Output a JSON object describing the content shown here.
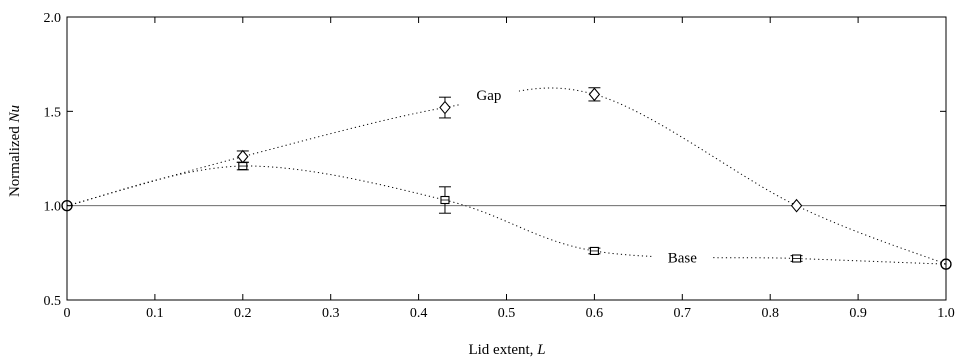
{
  "chart_data": {
    "type": "scatter",
    "title": "",
    "xlabel": "Lid extent, L",
    "xlabel_main": "Lid extent, ",
    "xlabel_var": "L",
    "ylabel": "Normalized Nu",
    "ylabel_main": "Normalized ",
    "ylabel_var": "Nu",
    "xlim": [
      0,
      1.0
    ],
    "ylim": [
      0.5,
      2.0
    ],
    "x_ticks": [
      "0",
      "0.1",
      "0.2",
      "0.3",
      "0.4",
      "0.5",
      "0.6",
      "0.7",
      "0.8",
      "0.9",
      "1.0"
    ],
    "y_ticks": [
      "0.5",
      "1.0",
      "1.5",
      "2.0"
    ],
    "grid": false,
    "reference_line": 1.0,
    "series": [
      {
        "name": "Gap",
        "marker": "diamond",
        "points": [
          {
            "x": 0.0,
            "y": 1.0,
            "err": 0.01
          },
          {
            "x": 0.2,
            "y": 1.26,
            "err": 0.03
          },
          {
            "x": 0.43,
            "y": 1.52,
            "err": 0.055
          },
          {
            "x": 0.6,
            "y": 1.59,
            "err": 0.035
          },
          {
            "x": 0.83,
            "y": 1.0,
            "err": 0.01
          },
          {
            "x": 1.0,
            "y": 0.69,
            "err": 0.01
          }
        ],
        "label_x": 0.48,
        "label_y": 1.57
      },
      {
        "name": "Base",
        "marker": "square",
        "points": [
          {
            "x": 0.0,
            "y": 1.0,
            "err": 0.01
          },
          {
            "x": 0.2,
            "y": 1.21,
            "err": 0.02
          },
          {
            "x": 0.43,
            "y": 1.03,
            "err": 0.07
          },
          {
            "x": 0.6,
            "y": 0.76,
            "err": 0.015
          },
          {
            "x": 0.83,
            "y": 0.72,
            "err": 0.015
          },
          {
            "x": 1.0,
            "y": 0.69,
            "err": 0.01
          }
        ],
        "label_x": 0.7,
        "label_y": 0.71
      }
    ],
    "endpoint_marker": "circle"
  }
}
